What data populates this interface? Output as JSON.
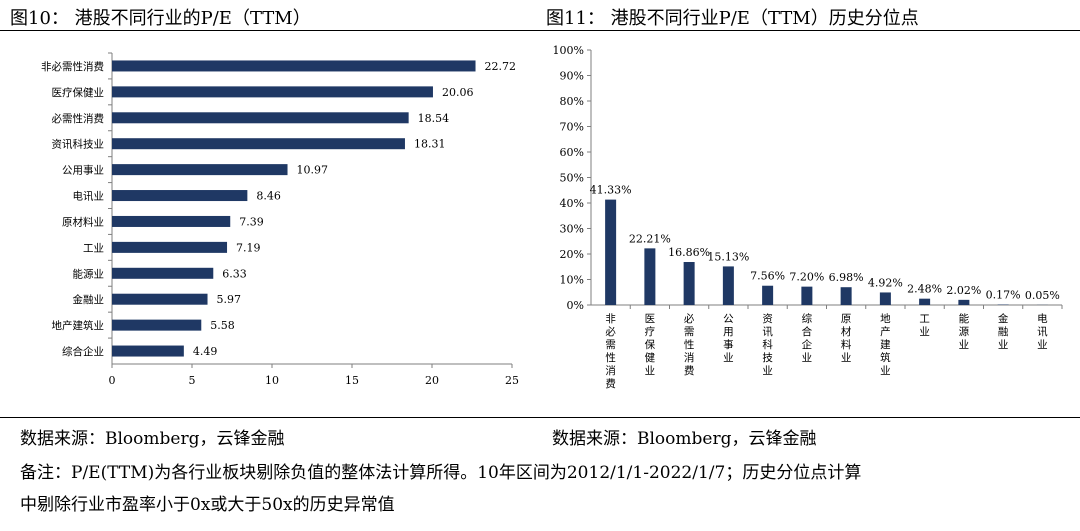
{
  "titles": {
    "left": "图10： 港股不同行业的P/E（TTM）",
    "right": "图11： 港股不同行业P/E（TTM）历史分位点"
  },
  "sources": {
    "left": "数据来源：Bloomberg，云锋金融",
    "right": "数据来源：Bloomberg，云锋金融"
  },
  "note": {
    "line1": "备注：P/E(TTM)为各行业板块剔除负值的整体法计算所得。10年区间为2012/1/1-2022/1/7；历史分位点计算",
    "line2": "中剔除行业市盈率小于0x或大于50x的历史异常值"
  },
  "colors": {
    "bar": "#1f3864",
    "axis": "#7f7f7f"
  },
  "chart_data": [
    {
      "type": "bar",
      "orientation": "horizontal",
      "title": "图10： 港股不同行业的P/E（TTM）",
      "categories": [
        "非必需性消费",
        "医疗保健业",
        "必需性消费",
        "资讯科技业",
        "公用事业",
        "电讯业",
        "原材料业",
        "工业",
        "能源业",
        "金融业",
        "地产建筑业",
        "综合企业"
      ],
      "values": [
        22.72,
        20.06,
        18.54,
        18.31,
        10.97,
        8.46,
        7.39,
        7.19,
        6.33,
        5.97,
        5.58,
        4.49
      ],
      "value_labels": [
        "22.72",
        "20.06",
        "18.54",
        "18.31",
        "10.97",
        "8.46",
        "7.39",
        "7.19",
        "6.33",
        "5.97",
        "5.58",
        "4.49"
      ],
      "xlim": [
        0,
        25
      ],
      "xticks": [
        0,
        5,
        10,
        15,
        20,
        25
      ],
      "grid": false
    },
    {
      "type": "bar",
      "orientation": "vertical",
      "title": "图11： 港股不同行业P/E（TTM）历史分位点",
      "categories": [
        "非必需性消费",
        "医疗保健业",
        "必需性消费",
        "公用事业",
        "资讯科技业",
        "综合企业",
        "原材料业",
        "地产建筑业",
        "工业",
        "能源业",
        "金融业",
        "电讯业"
      ],
      "values": [
        41.33,
        22.21,
        16.86,
        15.13,
        7.56,
        7.2,
        6.98,
        4.92,
        2.48,
        2.02,
        0.17,
        0.05
      ],
      "value_labels": [
        "41.33%",
        "22.21%",
        "16.86%",
        "15.13%",
        "7.56%",
        "7.20%",
        "6.98%",
        "4.92%",
        "2.48%",
        "2.02%",
        "0.17%",
        "0.05%"
      ],
      "ylim": [
        0,
        100
      ],
      "yticks": [
        "0%",
        "10%",
        "20%",
        "30%",
        "40%",
        "50%",
        "60%",
        "70%",
        "80%",
        "90%",
        "100%"
      ],
      "grid": false
    }
  ]
}
